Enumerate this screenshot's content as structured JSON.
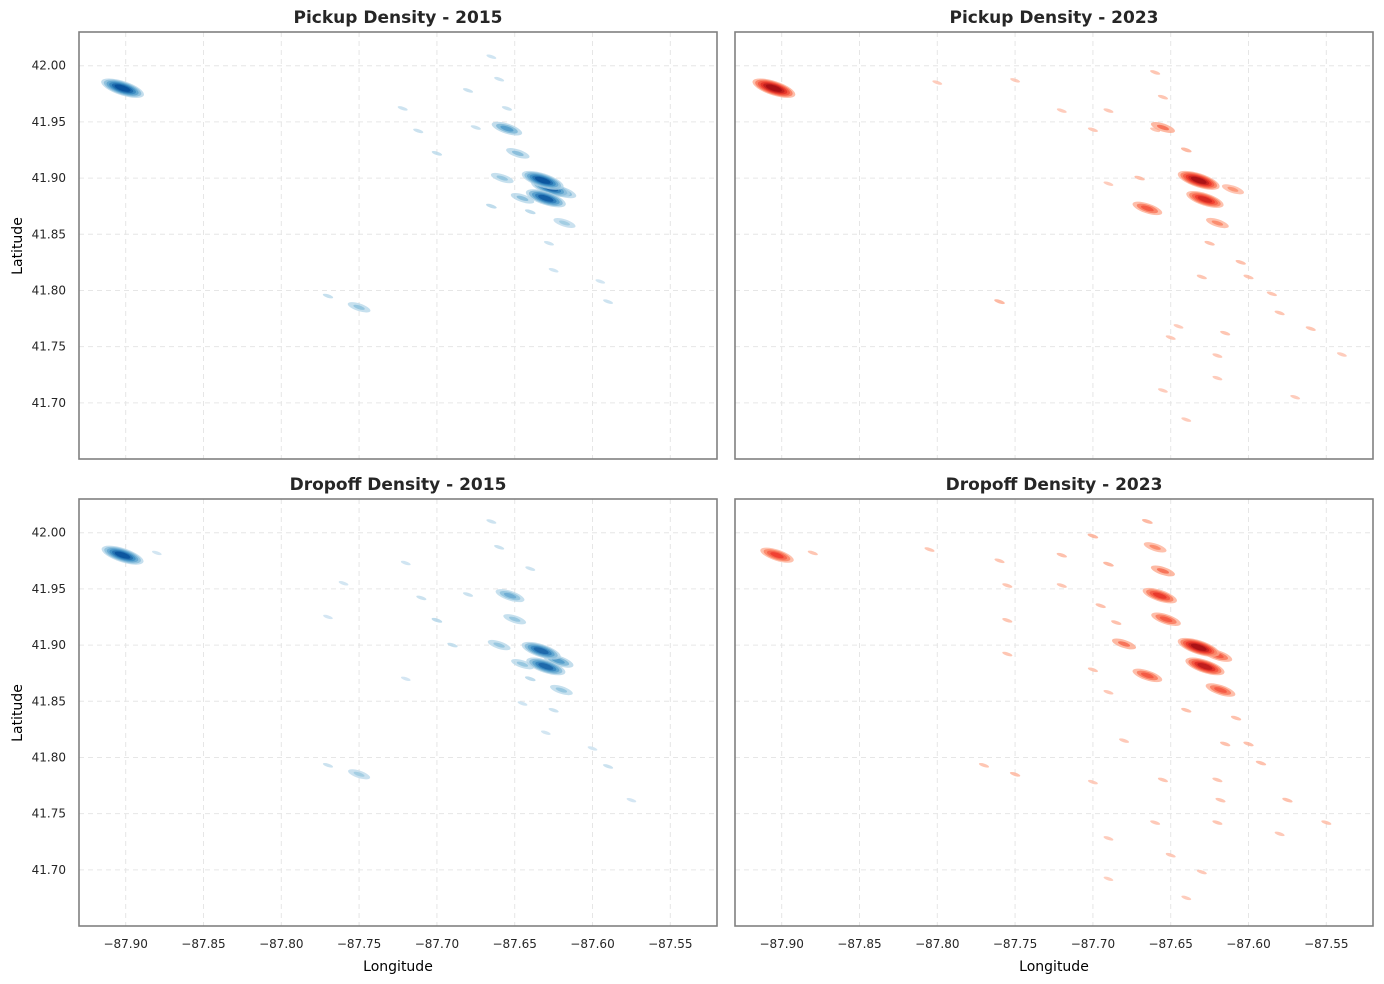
{
  "chart_data": [
    {
      "type": "heatmap",
      "title": "Pickup Density - 2015",
      "xlabel": "",
      "ylabel": "Latitude",
      "colormap": "Blues",
      "xlim": [
        -87.93,
        -87.52
      ],
      "ylim": [
        41.65,
        42.03
      ],
      "xticks": [
        "−87.90",
        "−87.85",
        "−87.80",
        "−87.75",
        "−87.70",
        "−87.65",
        "−87.60",
        "−87.55"
      ],
      "yticks": [
        "42.00",
        "41.95",
        "41.90",
        "41.85",
        "41.80",
        "41.75",
        "41.70"
      ],
      "show_xticks": false,
      "show_yticks": true,
      "grid": true,
      "hotspots": [
        {
          "lon": -87.902,
          "lat": 41.98,
          "intensity": 1.0
        },
        {
          "lon": -87.632,
          "lat": 41.898,
          "intensity": 0.95
        },
        {
          "lon": -87.63,
          "lat": 41.882,
          "intensity": 0.9
        },
        {
          "lon": -87.627,
          "lat": 41.891,
          "intensity": 0.85
        },
        {
          "lon": -87.62,
          "lat": 41.888,
          "intensity": 0.5
        },
        {
          "lon": -87.655,
          "lat": 41.944,
          "intensity": 0.55
        },
        {
          "lon": -87.648,
          "lat": 41.922,
          "intensity": 0.35
        },
        {
          "lon": -87.658,
          "lat": 41.9,
          "intensity": 0.3
        },
        {
          "lon": -87.645,
          "lat": 41.882,
          "intensity": 0.35
        },
        {
          "lon": -87.618,
          "lat": 41.86,
          "intensity": 0.25
        },
        {
          "lon": -87.665,
          "lat": 41.875,
          "intensity": 0.2
        },
        {
          "lon": -87.75,
          "lat": 41.785,
          "intensity": 0.3
        },
        {
          "lon": -87.77,
          "lat": 41.795,
          "intensity": 0.15
        },
        {
          "lon": -87.7,
          "lat": 41.922,
          "intensity": 0.15
        },
        {
          "lon": -87.675,
          "lat": 41.945,
          "intensity": 0.12
        },
        {
          "lon": -87.712,
          "lat": 41.942,
          "intensity": 0.12
        },
        {
          "lon": -87.655,
          "lat": 41.962,
          "intensity": 0.12
        },
        {
          "lon": -87.68,
          "lat": 41.978,
          "intensity": 0.12
        },
        {
          "lon": -87.66,
          "lat": 41.988,
          "intensity": 0.1
        },
        {
          "lon": -87.665,
          "lat": 42.008,
          "intensity": 0.08
        },
        {
          "lon": -87.722,
          "lat": 41.962,
          "intensity": 0.1
        },
        {
          "lon": -87.59,
          "lat": 41.79,
          "intensity": 0.1
        },
        {
          "lon": -87.595,
          "lat": 41.808,
          "intensity": 0.06
        },
        {
          "lon": -87.64,
          "lat": 41.87,
          "intensity": 0.2
        },
        {
          "lon": -87.628,
          "lat": 41.842,
          "intensity": 0.1
        },
        {
          "lon": -87.625,
          "lat": 41.818,
          "intensity": 0.08
        }
      ]
    },
    {
      "type": "heatmap",
      "title": "Pickup Density - 2023",
      "xlabel": "",
      "ylabel": "",
      "colormap": "Reds",
      "xlim": [
        -87.93,
        -87.52
      ],
      "ylim": [
        41.65,
        42.03
      ],
      "xticks": [
        "−87.90",
        "−87.85",
        "−87.80",
        "−87.75",
        "−87.70",
        "−87.65",
        "−87.60",
        "−87.55"
      ],
      "yticks": [
        "42.00",
        "41.95",
        "41.90",
        "41.85",
        "41.80",
        "41.75",
        "41.70"
      ],
      "show_xticks": false,
      "show_yticks": false,
      "grid": true,
      "hotspots": [
        {
          "lon": -87.905,
          "lat": 41.98,
          "intensity": 1.0
        },
        {
          "lon": -87.632,
          "lat": 41.898,
          "intensity": 0.95
        },
        {
          "lon": -87.628,
          "lat": 41.881,
          "intensity": 0.75
        },
        {
          "lon": -87.665,
          "lat": 41.873,
          "intensity": 0.5
        },
        {
          "lon": -87.655,
          "lat": 41.945,
          "intensity": 0.4
        },
        {
          "lon": -87.76,
          "lat": 41.79,
          "intensity": 0.2
        },
        {
          "lon": -87.62,
          "lat": 41.86,
          "intensity": 0.3
        },
        {
          "lon": -87.61,
          "lat": 41.89,
          "intensity": 0.25
        },
        {
          "lon": -87.64,
          "lat": 41.925,
          "intensity": 0.2
        },
        {
          "lon": -87.67,
          "lat": 41.9,
          "intensity": 0.15
        },
        {
          "lon": -87.625,
          "lat": 41.842,
          "intensity": 0.15
        },
        {
          "lon": -87.605,
          "lat": 41.825,
          "intensity": 0.15
        },
        {
          "lon": -87.63,
          "lat": 41.812,
          "intensity": 0.12
        },
        {
          "lon": -87.6,
          "lat": 41.812,
          "intensity": 0.12
        },
        {
          "lon": -87.585,
          "lat": 41.797,
          "intensity": 0.12
        },
        {
          "lon": -87.58,
          "lat": 41.78,
          "intensity": 0.12
        },
        {
          "lon": -87.56,
          "lat": 41.766,
          "intensity": 0.12
        },
        {
          "lon": -87.615,
          "lat": 41.762,
          "intensity": 0.12
        },
        {
          "lon": -87.62,
          "lat": 41.742,
          "intensity": 0.1
        },
        {
          "lon": -87.65,
          "lat": 41.758,
          "intensity": 0.1
        },
        {
          "lon": -87.66,
          "lat": 41.994,
          "intensity": 0.12
        },
        {
          "lon": -87.655,
          "lat": 41.972,
          "intensity": 0.12
        },
        {
          "lon": -87.69,
          "lat": 41.96,
          "intensity": 0.1
        },
        {
          "lon": -87.7,
          "lat": 41.943,
          "intensity": 0.1
        },
        {
          "lon": -87.72,
          "lat": 41.96,
          "intensity": 0.08
        },
        {
          "lon": -87.75,
          "lat": 41.987,
          "intensity": 0.08
        },
        {
          "lon": -87.8,
          "lat": 41.985,
          "intensity": 0.08
        },
        {
          "lon": -87.69,
          "lat": 41.895,
          "intensity": 0.08
        },
        {
          "lon": -87.645,
          "lat": 41.768,
          "intensity": 0.08
        },
        {
          "lon": -87.62,
          "lat": 41.722,
          "intensity": 0.08
        },
        {
          "lon": -87.655,
          "lat": 41.711,
          "intensity": 0.08
        },
        {
          "lon": -87.57,
          "lat": 41.705,
          "intensity": 0.08
        },
        {
          "lon": -87.64,
          "lat": 41.685,
          "intensity": 0.08
        },
        {
          "lon": -87.54,
          "lat": 41.743,
          "intensity": 0.08
        },
        {
          "lon": -87.66,
          "lat": 41.943,
          "intensity": 0.12
        }
      ]
    },
    {
      "type": "heatmap",
      "title": "Dropoff Density - 2015",
      "xlabel": "Longitude",
      "ylabel": "Latitude",
      "colormap": "Blues",
      "xlim": [
        -87.93,
        -87.52
      ],
      "ylim": [
        41.65,
        42.03
      ],
      "xticks": [
        "−87.90",
        "−87.85",
        "−87.80",
        "−87.75",
        "−87.70",
        "−87.65",
        "−87.60",
        "−87.55"
      ],
      "yticks": [
        "42.00",
        "41.95",
        "41.90",
        "41.85",
        "41.80",
        "41.75",
        "41.70"
      ],
      "show_xticks": true,
      "show_yticks": true,
      "grid": true,
      "hotspots": [
        {
          "lon": -87.902,
          "lat": 41.98,
          "intensity": 0.95
        },
        {
          "lon": -87.633,
          "lat": 41.895,
          "intensity": 0.85
        },
        {
          "lon": -87.63,
          "lat": 41.881,
          "intensity": 0.85
        },
        {
          "lon": -87.622,
          "lat": 41.886,
          "intensity": 0.55
        },
        {
          "lon": -87.653,
          "lat": 41.944,
          "intensity": 0.45
        },
        {
          "lon": -87.65,
          "lat": 41.923,
          "intensity": 0.3
        },
        {
          "lon": -87.66,
          "lat": 41.9,
          "intensity": 0.3
        },
        {
          "lon": -87.645,
          "lat": 41.883,
          "intensity": 0.3
        },
        {
          "lon": -87.62,
          "lat": 41.86,
          "intensity": 0.3
        },
        {
          "lon": -87.64,
          "lat": 41.87,
          "intensity": 0.2
        },
        {
          "lon": -87.7,
          "lat": 41.922,
          "intensity": 0.2
        },
        {
          "lon": -87.69,
          "lat": 41.9,
          "intensity": 0.15
        },
        {
          "lon": -87.75,
          "lat": 41.785,
          "intensity": 0.25
        },
        {
          "lon": -87.77,
          "lat": 41.793,
          "intensity": 0.12
        },
        {
          "lon": -87.71,
          "lat": 41.942,
          "intensity": 0.12
        },
        {
          "lon": -87.68,
          "lat": 41.945,
          "intensity": 0.12
        },
        {
          "lon": -87.66,
          "lat": 41.987,
          "intensity": 0.12
        },
        {
          "lon": -87.665,
          "lat": 42.01,
          "intensity": 0.1
        },
        {
          "lon": -87.64,
          "lat": 41.968,
          "intensity": 0.1
        },
        {
          "lon": -87.59,
          "lat": 41.792,
          "intensity": 0.12
        },
        {
          "lon": -87.6,
          "lat": 41.808,
          "intensity": 0.06
        },
        {
          "lon": -87.625,
          "lat": 41.842,
          "intensity": 0.12
        },
        {
          "lon": -87.645,
          "lat": 41.848,
          "intensity": 0.08
        },
        {
          "lon": -87.88,
          "lat": 41.982,
          "intensity": 0.06
        },
        {
          "lon": -87.72,
          "lat": 41.973,
          "intensity": 0.08
        },
        {
          "lon": -87.76,
          "lat": 41.955,
          "intensity": 0.06
        },
        {
          "lon": -87.77,
          "lat": 41.925,
          "intensity": 0.05
        },
        {
          "lon": -87.72,
          "lat": 41.87,
          "intensity": 0.05
        },
        {
          "lon": -87.575,
          "lat": 41.762,
          "intensity": 0.05
        },
        {
          "lon": -87.63,
          "lat": 41.822,
          "intensity": 0.06
        }
      ]
    },
    {
      "type": "heatmap",
      "title": "Dropoff Density - 2023",
      "xlabel": "Longitude",
      "ylabel": "",
      "colormap": "Reds",
      "xlim": [
        -87.93,
        -87.52
      ],
      "ylim": [
        41.65,
        42.03
      ],
      "xticks": [
        "−87.90",
        "−87.85",
        "−87.80",
        "−87.75",
        "−87.70",
        "−87.65",
        "−87.60",
        "−87.55"
      ],
      "yticks": [
        "42.00",
        "41.95",
        "41.90",
        "41.85",
        "41.80",
        "41.75",
        "41.70"
      ],
      "show_xticks": true,
      "show_yticks": false,
      "grid": true,
      "hotspots": [
        {
          "lon": -87.903,
          "lat": 41.98,
          "intensity": 0.6
        },
        {
          "lon": -87.632,
          "lat": 41.898,
          "intensity": 0.95
        },
        {
          "lon": -87.628,
          "lat": 41.881,
          "intensity": 0.85
        },
        {
          "lon": -87.62,
          "lat": 41.891,
          "intensity": 0.5
        },
        {
          "lon": -87.657,
          "lat": 41.944,
          "intensity": 0.65
        },
        {
          "lon": -87.655,
          "lat": 41.966,
          "intensity": 0.4
        },
        {
          "lon": -87.653,
          "lat": 41.923,
          "intensity": 0.5
        },
        {
          "lon": -87.665,
          "lat": 41.873,
          "intensity": 0.5
        },
        {
          "lon": -87.68,
          "lat": 41.901,
          "intensity": 0.4
        },
        {
          "lon": -87.618,
          "lat": 41.86,
          "intensity": 0.5
        },
        {
          "lon": -87.66,
          "lat": 41.987,
          "intensity": 0.3
        },
        {
          "lon": -87.665,
          "lat": 42.01,
          "intensity": 0.2
        },
        {
          "lon": -87.7,
          "lat": 41.997,
          "intensity": 0.2
        },
        {
          "lon": -87.69,
          "lat": 41.972,
          "intensity": 0.2
        },
        {
          "lon": -87.72,
          "lat": 41.98,
          "intensity": 0.15
        },
        {
          "lon": -87.76,
          "lat": 41.975,
          "intensity": 0.12
        },
        {
          "lon": -87.755,
          "lat": 41.953,
          "intensity": 0.12
        },
        {
          "lon": -87.72,
          "lat": 41.953,
          "intensity": 0.12
        },
        {
          "lon": -87.695,
          "lat": 41.935,
          "intensity": 0.15
        },
        {
          "lon": -87.685,
          "lat": 41.92,
          "intensity": 0.15
        },
        {
          "lon": -87.805,
          "lat": 41.985,
          "intensity": 0.12
        },
        {
          "lon": -87.88,
          "lat": 41.982,
          "intensity": 0.12
        },
        {
          "lon": -87.755,
          "lat": 41.922,
          "intensity": 0.12
        },
        {
          "lon": -87.755,
          "lat": 41.892,
          "intensity": 0.12
        },
        {
          "lon": -87.7,
          "lat": 41.878,
          "intensity": 0.12
        },
        {
          "lon": -87.69,
          "lat": 41.858,
          "intensity": 0.1
        },
        {
          "lon": -87.68,
          "lat": 41.815,
          "intensity": 0.1
        },
        {
          "lon": -87.64,
          "lat": 41.842,
          "intensity": 0.15
        },
        {
          "lon": -87.615,
          "lat": 41.812,
          "intensity": 0.15
        },
        {
          "lon": -87.608,
          "lat": 41.835,
          "intensity": 0.15
        },
        {
          "lon": -87.6,
          "lat": 41.812,
          "intensity": 0.15
        },
        {
          "lon": -87.592,
          "lat": 41.795,
          "intensity": 0.15
        },
        {
          "lon": -87.575,
          "lat": 41.762,
          "intensity": 0.15
        },
        {
          "lon": -87.55,
          "lat": 41.742,
          "intensity": 0.12
        },
        {
          "lon": -87.62,
          "lat": 41.78,
          "intensity": 0.12
        },
        {
          "lon": -87.618,
          "lat": 41.762,
          "intensity": 0.12
        },
        {
          "lon": -87.62,
          "lat": 41.742,
          "intensity": 0.12
        },
        {
          "lon": -87.58,
          "lat": 41.732,
          "intensity": 0.1
        },
        {
          "lon": -87.655,
          "lat": 41.78,
          "intensity": 0.12
        },
        {
          "lon": -87.66,
          "lat": 41.742,
          "intensity": 0.1
        },
        {
          "lon": -87.65,
          "lat": 41.713,
          "intensity": 0.1
        },
        {
          "lon": -87.63,
          "lat": 41.698,
          "intensity": 0.1
        },
        {
          "lon": -87.69,
          "lat": 41.728,
          "intensity": 0.08
        },
        {
          "lon": -87.7,
          "lat": 41.778,
          "intensity": 0.08
        },
        {
          "lon": -87.77,
          "lat": 41.793,
          "intensity": 0.12
        },
        {
          "lon": -87.75,
          "lat": 41.785,
          "intensity": 0.15
        },
        {
          "lon": -87.64,
          "lat": 41.675,
          "intensity": 0.08
        },
        {
          "lon": -87.69,
          "lat": 41.692,
          "intensity": 0.06
        }
      ]
    }
  ]
}
